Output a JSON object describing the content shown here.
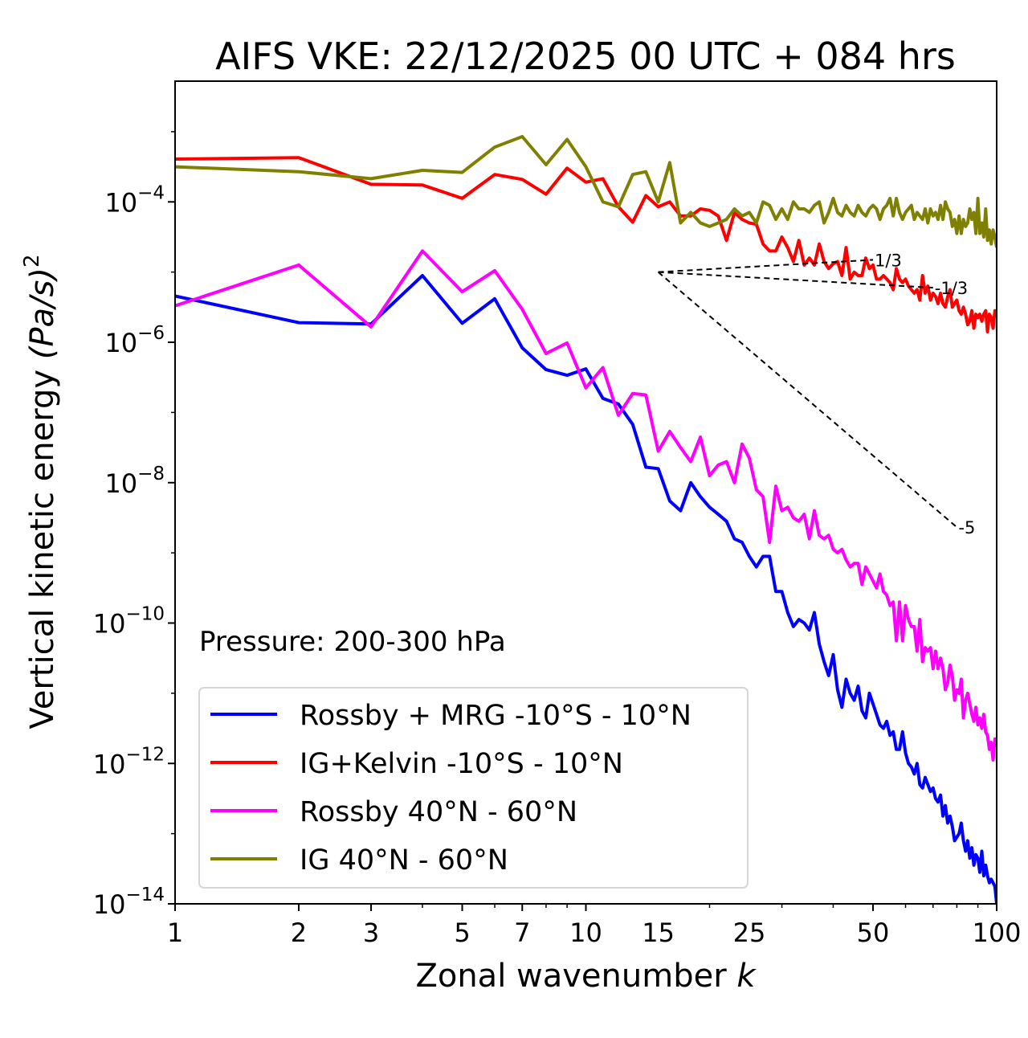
{
  "chart_data": {
    "type": "line",
    "title": "AIFS VKE: 22/12/2025 00 UTC + 084 hrs",
    "xlabel": "Zonal wavenumber",
    "xlabel_italic": "k",
    "ylabel": "Vertical kinetic energy",
    "ylabel_unit": "(Pa/s)",
    "ylabel_sup": "2",
    "xscale": "log",
    "yscale": "log",
    "xlim": [
      1,
      100
    ],
    "ylim_log10": [
      -14,
      -2.28
    ],
    "x_ticks": [
      1,
      2,
      3,
      5,
      7,
      10,
      15,
      25,
      50,
      100
    ],
    "x_tick_labels": [
      "1",
      "2",
      "3",
      "5",
      "7",
      "10",
      "15",
      "25",
      "50",
      "100"
    ],
    "y_ticks_log10": [
      -14,
      -12,
      -10,
      -8,
      -6,
      -4
    ],
    "y_tick_labels": [
      {
        "base": "10",
        "exp": "−14"
      },
      {
        "base": "10",
        "exp": "−12"
      },
      {
        "base": "10",
        "exp": "−10"
      },
      {
        "base": "10",
        "exp": "−8"
      },
      {
        "base": "10",
        "exp": "−6"
      },
      {
        "base": "10",
        "exp": "−4"
      }
    ],
    "annotation": "Pressure: 200-300 hPa",
    "legend_position": "lower-left",
    "x_start": 1,
    "series": [
      {
        "name": "Rossby + MRG -10°S - 10°N",
        "color": "#0000ff",
        "values_log10": [
          -5.34,
          -5.72,
          -5.74,
          -5.05,
          -5.73,
          -5.38,
          -6.08,
          -6.39,
          -6.47,
          -6.38,
          -6.8,
          -6.88,
          -7.17,
          -7.78,
          -7.8,
          -8.26,
          -8.4,
          -8.0,
          -8.2,
          -8.35,
          -8.45,
          -8.55,
          -8.8,
          -8.85,
          -9.05,
          -9.2,
          -9.05,
          -9.05,
          -9.55,
          -9.55,
          -9.85,
          -10.05,
          -9.95,
          -10.0,
          -10.1,
          -9.85,
          -10.3,
          -10.55,
          -10.75,
          -10.45,
          -10.95,
          -11.2,
          -10.8,
          -11.0,
          -11.1,
          -10.9,
          -11.25,
          -11.35,
          -11.0,
          -11.15,
          -11.3,
          -11.45,
          -11.5,
          -11.4,
          -11.6,
          -11.55,
          -11.8,
          -11.8,
          -11.55,
          -11.85,
          -12.0,
          -12.05,
          -12.15,
          -12.0,
          -12.3,
          -12.35,
          -12.2,
          -12.3,
          -12.4,
          -12.35,
          -12.5,
          -12.55,
          -12.45,
          -12.75,
          -12.6,
          -12.85,
          -12.75,
          -12.9,
          -13.1,
          -13.05,
          -13.0,
          -12.85,
          -13.1,
          -13.25,
          -13.1,
          -13.35,
          -13.2,
          -13.45,
          -13.3,
          -13.35,
          -13.55,
          -13.25,
          -13.6,
          -13.45,
          -13.6,
          -13.7,
          -13.65,
          -13.7,
          -13.75,
          -14.0
        ]
      },
      {
        "name": "IG+Kelvin -10°S - 10°N",
        "color": "#ff0000",
        "values_log10": [
          -3.39,
          -3.37,
          -3.75,
          -3.76,
          -3.95,
          -3.61,
          -3.68,
          -3.89,
          -3.52,
          -3.72,
          -3.67,
          -4.07,
          -4.29,
          -3.91,
          -4.07,
          -4.0,
          -4.2,
          -4.2,
          -4.1,
          -4.12,
          -4.2,
          -4.55,
          -4.15,
          -4.25,
          -4.3,
          -4.32,
          -4.6,
          -4.7,
          -4.7,
          -4.5,
          -4.65,
          -4.85,
          -4.55,
          -4.9,
          -4.8,
          -4.9,
          -4.6,
          -4.85,
          -4.95,
          -4.88,
          -4.85,
          -5.05,
          -4.65,
          -5.1,
          -5.0,
          -5.05,
          -5.05,
          -4.8,
          -4.95,
          -4.9,
          -5.1,
          -5.1,
          -5.05,
          -5.1,
          -5.15,
          -5.25,
          -4.95,
          -5.1,
          -5.15,
          -5.1,
          -5.2,
          -5.25,
          -5.3,
          -5.25,
          -5.4,
          -5.05,
          -5.3,
          -5.2,
          -5.4,
          -5.3,
          -5.35,
          -5.45,
          -5.3,
          -5.45,
          -5.5,
          -5.35,
          -5.25,
          -5.5,
          -5.45,
          -5.4,
          -5.55,
          -5.6,
          -5.5,
          -5.6,
          -5.75,
          -5.7,
          -5.55,
          -5.8,
          -5.6,
          -5.65,
          -5.6,
          -5.7,
          -5.6,
          -5.55,
          -5.85,
          -5.6,
          -5.65,
          -5.8,
          -5.55,
          -5.6
        ]
      },
      {
        "name": "Rossby 40°N - 60°N",
        "color": "#ff00ff",
        "values_log10": [
          -5.48,
          -4.9,
          -5.78,
          -4.7,
          -5.28,
          -4.98,
          -5.53,
          -6.16,
          -6.01,
          -6.65,
          -6.36,
          -7.04,
          -6.73,
          -6.75,
          -7.55,
          -7.27,
          -7.5,
          -7.7,
          -7.35,
          -7.9,
          -7.75,
          -7.7,
          -8.0,
          -7.45,
          -7.65,
          -8.1,
          -8.2,
          -8.85,
          -8.05,
          -8.4,
          -8.35,
          -8.5,
          -8.55,
          -8.45,
          -8.8,
          -8.4,
          -8.75,
          -8.8,
          -8.75,
          -8.95,
          -9.0,
          -8.95,
          -9.1,
          -9.2,
          -9.15,
          -9.15,
          -9.45,
          -9.2,
          -9.3,
          -9.4,
          -9.5,
          -9.3,
          -9.55,
          -9.6,
          -9.75,
          -9.7,
          -10.25,
          -9.7,
          -10.25,
          -9.75,
          -9.95,
          -10.05,
          -10.05,
          -10.4,
          -9.95,
          -10.55,
          -10.35,
          -10.4,
          -10.35,
          -10.65,
          -10.4,
          -10.65,
          -10.5,
          -10.65,
          -10.95,
          -10.85,
          -10.6,
          -10.75,
          -11.1,
          -10.95,
          -11.0,
          -10.8,
          -11.35,
          -11.1,
          -11.0,
          -11.15,
          -11.3,
          -11.4,
          -11.2,
          -11.45,
          -11.35,
          -11.5,
          -11.3,
          -11.55,
          -11.6,
          -11.8,
          -11.7,
          -11.95,
          -11.65,
          -11.7
        ]
      },
      {
        "name": "IG 40°N - 60°N",
        "color": "#808000",
        "values_log10": [
          -3.5,
          -3.57,
          -3.67,
          -3.55,
          -3.58,
          -3.22,
          -3.07,
          -3.47,
          -3.11,
          -3.5,
          -4.0,
          -4.07,
          -3.61,
          -3.57,
          -4.0,
          -3.44,
          -4.3,
          -4.15,
          -4.3,
          -4.35,
          -4.3,
          -4.25,
          -4.1,
          -4.2,
          -4.15,
          -4.3,
          -4.0,
          -4.05,
          -4.25,
          -4.1,
          -4.25,
          -4.0,
          -4.1,
          -4.1,
          -4.15,
          -4.05,
          -4.0,
          -4.3,
          -4.15,
          -3.95,
          -4.15,
          -4.2,
          -4.05,
          -4.15,
          -4.2,
          -4.05,
          -4.15,
          -4.2,
          -4.1,
          -4.05,
          -4.1,
          -4.25,
          -4.1,
          -4.05,
          -3.95,
          -4.2,
          -3.95,
          -4.15,
          -4.25,
          -4.15,
          -4.1,
          -4.05,
          -4.25,
          -4.15,
          -4.2,
          -4.25,
          -4.1,
          -4.3,
          -4.1,
          -4.2,
          -4.15,
          -4.25,
          -4.05,
          -4.25,
          -4.0,
          -4.1,
          -4.15,
          -4.35,
          -4.25,
          -4.45,
          -4.2,
          -4.45,
          -4.25,
          -4.35,
          -4.3,
          -4.1,
          -4.25,
          -4.15,
          -4.45,
          -3.95,
          -4.45,
          -4.3,
          -4.5,
          -4.1,
          -4.55,
          -4.4,
          -4.6,
          -4.4,
          -4.5,
          -4.65
        ]
      }
    ],
    "reference_slopes": [
      {
        "label": "1/3",
        "slope": 0.3333,
        "k_start": 15,
        "k_end": 50,
        "y_start_log10": -5.0
      },
      {
        "label": "-1/3",
        "slope": -0.3333,
        "k_start": 15,
        "k_end": 70,
        "y_start_log10": -5.0
      },
      {
        "label": "-5",
        "slope": -5,
        "k_start": 15,
        "k_end": 80,
        "y_start_log10": -5.0
      }
    ]
  }
}
